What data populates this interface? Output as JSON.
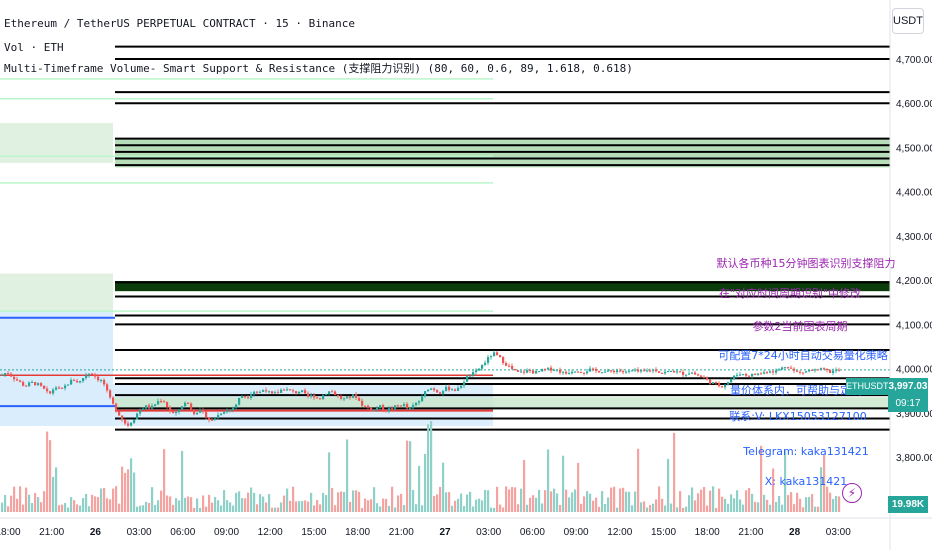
{
  "header": {
    "title_line": "Ethereum / TetherUS PERPETUAL CONTRACT · 15 · Binance",
    "volume_line": "Vol · ETH",
    "indicator_line": "Multi-Timeframe Volume- Smart Support & Resistance (支撑阻力识别) (80, 60, 0.6, 89, 1.618, 0.618)"
  },
  "currency_button": "USDT",
  "notes": [
    {
      "text": "默认各币种15分钟图表识别支撑阻力",
      "color": "#9c27b0"
    },
    {
      "text": "在\"对应时间周期识别\"中修改",
      "color": "#9c27b0"
    },
    {
      "text": "参数2当前图表周期",
      "color": "#9c27b0"
    },
    {
      "text": "可配置7*24小时自动交易量化策略",
      "color": "#2962ff"
    },
    {
      "text": "量价体系内，可帮助与定制",
      "color": "#2962ff"
    },
    {
      "text": "联系:V: LKX15053127100",
      "color": "#2962ff"
    },
    {
      "text": "Telegram: kaka131421",
      "color": "#2962ff"
    },
    {
      "text": "X: kaka131421",
      "color": "#2962ff"
    }
  ],
  "price_tags": {
    "symbol": "ETHUSDT.P",
    "price": "3,997.03",
    "countdown": "09:17",
    "volume": "19.98K"
  },
  "colors": {
    "up": "#26a69a",
    "down": "#ef5350",
    "up_vol": "#8fd0c8",
    "down_vol": "#f5a3a1",
    "zone_green": "#c8e6c9",
    "zone_dark": "#0b3d0b",
    "zone_blue": "#bbdefb"
  },
  "chart_data": {
    "type": "candlestick",
    "y_axis": {
      "min": 3750,
      "max": 4760,
      "ticks": [
        "4,700.00",
        "4,600.00",
        "4,500.00",
        "4,400.00",
        "4,300.00",
        "4,200.00",
        "4,100.00",
        "4,000.00",
        "3,900.00",
        "3,800.00"
      ],
      "tick_values": [
        4700,
        4600,
        4500,
        4400,
        4300,
        4200,
        4100,
        4000,
        3900,
        3800
      ]
    },
    "x_ticks": [
      {
        "label": "18:00",
        "bold": false
      },
      {
        "label": "21:00",
        "bold": false
      },
      {
        "label": "26",
        "bold": true
      },
      {
        "label": "03:00",
        "bold": false
      },
      {
        "label": "06:00",
        "bold": false
      },
      {
        "label": "09:00",
        "bold": false
      },
      {
        "label": "12:00",
        "bold": false
      },
      {
        "label": "15:00",
        "bold": false
      },
      {
        "label": "18:00",
        "bold": false
      },
      {
        "label": "21:00",
        "bold": false
      },
      {
        "label": "27",
        "bold": true
      },
      {
        "label": "03:00",
        "bold": false
      },
      {
        "label": "06:00",
        "bold": false
      },
      {
        "label": "09:00",
        "bold": false
      },
      {
        "label": "12:00",
        "bold": false
      },
      {
        "label": "15:00",
        "bold": false
      },
      {
        "label": "18:00",
        "bold": false
      },
      {
        "label": "21:00",
        "bold": false
      },
      {
        "label": "28",
        "bold": true
      },
      {
        "label": "03:00",
        "bold": false
      }
    ],
    "resistance_levels": [
      4728,
      4700,
      4625,
      4600,
      4195,
      4163,
      4120,
      4100,
      4042,
      3978,
      3965,
      3940,
      3910,
      3887,
      3862
    ],
    "close_path": [
      [
        0,
        3985
      ],
      [
        6,
        3992
      ],
      [
        12,
        3980
      ],
      [
        18,
        3970
      ],
      [
        24,
        3960
      ],
      [
        30,
        3968
      ],
      [
        36,
        3965
      ],
      [
        42,
        3955
      ],
      [
        48,
        3940
      ],
      [
        54,
        3960
      ],
      [
        60,
        3950
      ],
      [
        66,
        3965
      ],
      [
        72,
        3975
      ],
      [
        78,
        3968
      ],
      [
        84,
        3985
      ],
      [
        90,
        3992
      ],
      [
        96,
        3978
      ],
      [
        102,
        3970
      ],
      [
        108,
        3935
      ],
      [
        114,
        3910
      ],
      [
        120,
        3890
      ],
      [
        126,
        3870
      ],
      [
        132,
        3885
      ],
      [
        138,
        3905
      ],
      [
        144,
        3915
      ],
      [
        150,
        3910
      ],
      [
        156,
        3925
      ],
      [
        162,
        3930
      ],
      [
        168,
        3905
      ],
      [
        174,
        3895
      ],
      [
        180,
        3915
      ],
      [
        186,
        3925
      ],
      [
        192,
        3900
      ],
      [
        198,
        3905
      ],
      [
        204,
        3895
      ],
      [
        210,
        3880
      ],
      [
        216,
        3893
      ],
      [
        222,
        3905
      ],
      [
        228,
        3905
      ],
      [
        234,
        3915
      ],
      [
        240,
        3940
      ],
      [
        246,
        3935
      ],
      [
        252,
        3950
      ],
      [
        258,
        3945
      ],
      [
        264,
        3955
      ],
      [
        270,
        3940
      ],
      [
        276,
        3945
      ],
      [
        282,
        3955
      ],
      [
        288,
        3950
      ],
      [
        294,
        3945
      ],
      [
        300,
        3950
      ],
      [
        306,
        3935
      ],
      [
        312,
        3940
      ],
      [
        318,
        3930
      ],
      [
        324,
        3945
      ],
      [
        330,
        3950
      ],
      [
        336,
        3938
      ],
      [
        342,
        3930
      ],
      [
        348,
        3935
      ],
      [
        354,
        3940
      ],
      [
        360,
        3920
      ],
      [
        366,
        3912
      ],
      [
        372,
        3905
      ],
      [
        378,
        3915
      ],
      [
        384,
        3905
      ],
      [
        390,
        3910
      ],
      [
        396,
        3915
      ],
      [
        402,
        3920
      ],
      [
        408,
        3905
      ],
      [
        414,
        3920
      ],
      [
        420,
        3930
      ],
      [
        426,
        3955
      ],
      [
        432,
        3955
      ],
      [
        438,
        3945
      ],
      [
        444,
        3955
      ],
      [
        450,
        3955
      ],
      [
        456,
        3950
      ],
      [
        462,
        3970
      ],
      [
        468,
        3985
      ],
      [
        474,
        3990
      ],
      [
        480,
        4005
      ],
      [
        486,
        4020
      ],
      [
        492,
        4035
      ],
      [
        498,
        4025
      ],
      [
        504,
        4012
      ],
      [
        510,
        4000
      ],
      [
        516,
        3990
      ],
      [
        522,
        3992
      ],
      [
        528,
        3996
      ],
      [
        534,
        3990
      ],
      [
        540,
        3995
      ],
      [
        546,
        3998
      ],
      [
        552,
        4000
      ],
      [
        558,
        3995
      ],
      [
        564,
        3988
      ],
      [
        570,
        3995
      ],
      [
        576,
        3997
      ],
      [
        582,
        3992
      ],
      [
        588,
        3998
      ],
      [
        594,
        3994
      ],
      [
        600,
        3995
      ],
      [
        606,
        3992
      ],
      [
        612,
        3995
      ],
      [
        618,
        3996
      ],
      [
        624,
        3990
      ],
      [
        630,
        3995
      ],
      [
        636,
        3993
      ],
      [
        642,
        3992
      ],
      [
        648,
        3996
      ],
      [
        654,
        3998
      ],
      [
        660,
        3990
      ],
      [
        666,
        3992
      ],
      [
        672,
        3995
      ],
      [
        678,
        3990
      ],
      [
        684,
        3988
      ],
      [
        690,
        3992
      ],
      [
        696,
        3985
      ],
      [
        702,
        3980
      ],
      [
        708,
        3970
      ],
      [
        714,
        3965
      ],
      [
        720,
        3960
      ],
      [
        726,
        3968
      ],
      [
        732,
        3980
      ],
      [
        738,
        3990
      ],
      [
        744,
        3985
      ],
      [
        750,
        3985
      ],
      [
        756,
        3988
      ],
      [
        762,
        3990
      ],
      [
        768,
        3996
      ],
      [
        774,
        3993
      ],
      [
        780,
        4000
      ],
      [
        786,
        4008
      ],
      [
        792,
        3995
      ],
      [
        798,
        3990
      ],
      [
        804,
        3993
      ],
      [
        810,
        3997
      ],
      [
        816,
        3995
      ],
      [
        822,
        3998
      ],
      [
        828,
        3992
      ],
      [
        834,
        3995
      ],
      [
        840,
        3997
      ]
    ]
  }
}
